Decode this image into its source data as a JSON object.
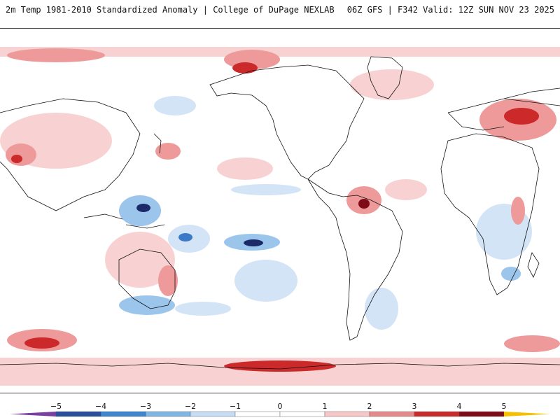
{
  "header": {
    "title": "2m Temp 1981-2010 Standardized Anomaly | College of DuPage NEXLAB",
    "model_info": "06Z GFS | F342 Valid: 12Z SUN NOV 23 2025"
  },
  "colorbar": {
    "tick_labels": [
      "-5",
      "-4",
      "-3",
      "-2",
      "-1",
      "0",
      "1",
      "2",
      "3",
      "4",
      "5"
    ],
    "colors": {
      "min_arrow": "#7a3fa0",
      "bins": [
        "#1c2a5a",
        "#2a4f9a",
        "#3e86cf",
        "#7fb6e4",
        "#c6def3",
        "#ffffff",
        "#ffffff",
        "#f7c6c6",
        "#e58a8a",
        "#c92b2b",
        "#7d0c16"
      ],
      "max_arrow": "#f5c000"
    }
  },
  "map": {
    "background": "#ffffff",
    "coastline_color": "#111111",
    "warm_light": "#f8d2d2",
    "warm_mid": "#ee9a9a",
    "warm_strong": "#cc2a2a",
    "warm_extreme": "#7d0c16",
    "cool_light": "#d3e4f6",
    "cool_mid": "#9cc5ec",
    "cool_strong": "#3a7ac8",
    "cool_extreme": "#1c2a6a"
  }
}
